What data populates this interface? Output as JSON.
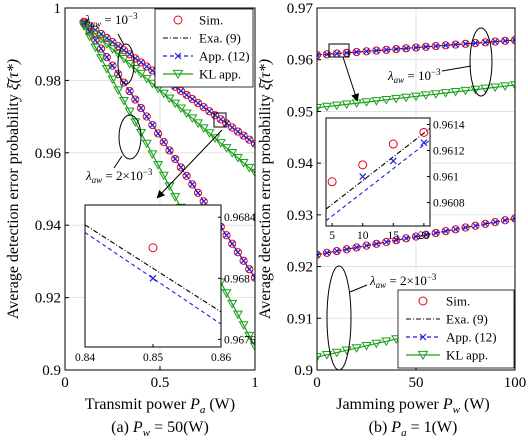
{
  "shared": {
    "ylabel": "Average detection error probability",
    "ylabel_symbol": "ξ̄(τ*)",
    "legend": [
      "Sim.",
      "Exa. (9)",
      "App. (12)",
      "KL app."
    ],
    "colors": {
      "sim": "#e8001c",
      "exa": "#000000",
      "app": "#1f1fd6",
      "kl": "#1aa01a"
    }
  },
  "chart_data": [
    {
      "panel": "a",
      "type": "line",
      "caption": "(a) P_w = 50(W)",
      "caption_text": "(a) ",
      "caption_math": "P",
      "caption_sub": "w",
      "caption_rest": " = 50(W)",
      "xlabel_text": "Transmit power ",
      "xlabel_math": "P",
      "xlabel_sub": "a",
      "xlabel_unit": " (W)",
      "xlim": [
        0,
        1
      ],
      "ylim": [
        0.9,
        1.0
      ],
      "xticks": [
        "0",
        "0.5",
        "1"
      ],
      "xtick_values": [
        0,
        0.5,
        1
      ],
      "yticks": [
        "0.9",
        "0.92",
        "0.94",
        "0.96",
        "0.98",
        "1"
      ],
      "ytick_values": [
        0.9,
        0.92,
        0.94,
        0.96,
        0.98,
        1.0
      ],
      "annotations": [
        "λ_aw = 10^-3",
        "λ_aw = 2×10^-3"
      ],
      "x": [
        0.1,
        0.13,
        0.16,
        0.19,
        0.22,
        0.25,
        0.28,
        0.31,
        0.34,
        0.37,
        0.4,
        0.43,
        0.46,
        0.49,
        0.52,
        0.55,
        0.58,
        0.61,
        0.64,
        0.67,
        0.7,
        0.73,
        0.76,
        0.79,
        0.82,
        0.85,
        0.88,
        0.91,
        0.94,
        0.97,
        1.0
      ],
      "series": [
        {
          "group": "1e-3",
          "start": 0.9962,
          "end": 0.9625
        },
        {
          "group": "1e-3 KL",
          "start": 0.9955,
          "end": 0.9545
        },
        {
          "group": "2e-3",
          "start": 0.9958,
          "end": 0.9255
        },
        {
          "group": "2e-3 KL",
          "start": 0.995,
          "end": 0.9065
        }
      ],
      "inset": {
        "xlim": [
          0.84,
          0.86
        ],
        "ylim": [
          0.96755,
          0.96848
        ],
        "xticks": [
          "0.84",
          "0.85",
          "0.86"
        ],
        "xtick_values": [
          0.84,
          0.85,
          0.86
        ],
        "yticks": [
          "0.9676",
          "0.968",
          "0.9684"
        ],
        "ytick_values": [
          0.9676,
          0.968,
          0.9684
        ],
        "sim": {
          "x": 0.85,
          "y": 0.9682
        },
        "app": {
          "x": 0.85,
          "y": 0.968
        },
        "exa_line": [
          [
            0.84,
            0.96835
          ],
          [
            0.86,
            0.96778
          ]
        ],
        "app_line": [
          [
            0.84,
            0.9683
          ],
          [
            0.86,
            0.9677
          ]
        ]
      }
    },
    {
      "panel": "b",
      "type": "line",
      "caption": "(b) P_a = 1(W)",
      "caption_text": "(b) ",
      "caption_math": "P",
      "caption_sub": "a",
      "caption_rest": " = 1(W)",
      "xlabel_text": "Jamming power ",
      "xlabel_math": "P",
      "xlabel_sub": "w",
      "xlabel_unit": " (W)",
      "xlim": [
        0,
        100
      ],
      "ylim": [
        0.9,
        0.97
      ],
      "xticks": [
        "0",
        "50",
        "100"
      ],
      "xtick_values": [
        0,
        50,
        100
      ],
      "yticks": [
        "0.9",
        "0.91",
        "0.92",
        "0.93",
        "0.94",
        "0.95",
        "0.96",
        "0.97"
      ],
      "ytick_values": [
        0.9,
        0.91,
        0.92,
        0.93,
        0.94,
        0.95,
        0.96,
        0.97
      ],
      "annotations": [
        "λ_aw = 10^-3",
        "λ_aw = 2×10^-3"
      ],
      "x": [
        0,
        5,
        10,
        15,
        20,
        25,
        30,
        35,
        40,
        45,
        50,
        55,
        60,
        65,
        70,
        75,
        80,
        85,
        90,
        95,
        100
      ],
      "series": [
        {
          "group": "1e-3",
          "start": 0.9609,
          "end": 0.9638
        },
        {
          "group": "1e-3 KL",
          "start": 0.9507,
          "end": 0.9551
        },
        {
          "group": "2e-3",
          "start": 0.9223,
          "end": 0.9293
        },
        {
          "group": "2e-3 KL",
          "start": 0.9025,
          "end": 0.9112
        }
      ],
      "inset": {
        "xlim": [
          4,
          21
        ],
        "ylim": [
          0.96062,
          0.96145
        ],
        "xticks": [
          "5",
          "10",
          "15",
          "20"
        ],
        "xtick_values": [
          5,
          10,
          15,
          20
        ],
        "yticks": [
          "0.9608",
          "0.961",
          "0.9612",
          "0.9614"
        ],
        "ytick_values": [
          0.9608,
          0.961,
          0.9612,
          0.9614
        ],
        "sim": [
          [
            5,
            0.96096
          ],
          [
            10,
            0.96109
          ],
          [
            15,
            0.96125
          ],
          [
            20,
            0.96134
          ]
        ],
        "app": [
          [
            10,
            0.961
          ],
          [
            15,
            0.96112
          ],
          [
            20,
            0.96126
          ]
        ],
        "exa_line": [
          [
            4,
            0.96075
          ],
          [
            21,
            0.96137
          ]
        ],
        "app_line": [
          [
            4,
            0.96066
          ],
          [
            21,
            0.96128
          ]
        ]
      }
    }
  ]
}
